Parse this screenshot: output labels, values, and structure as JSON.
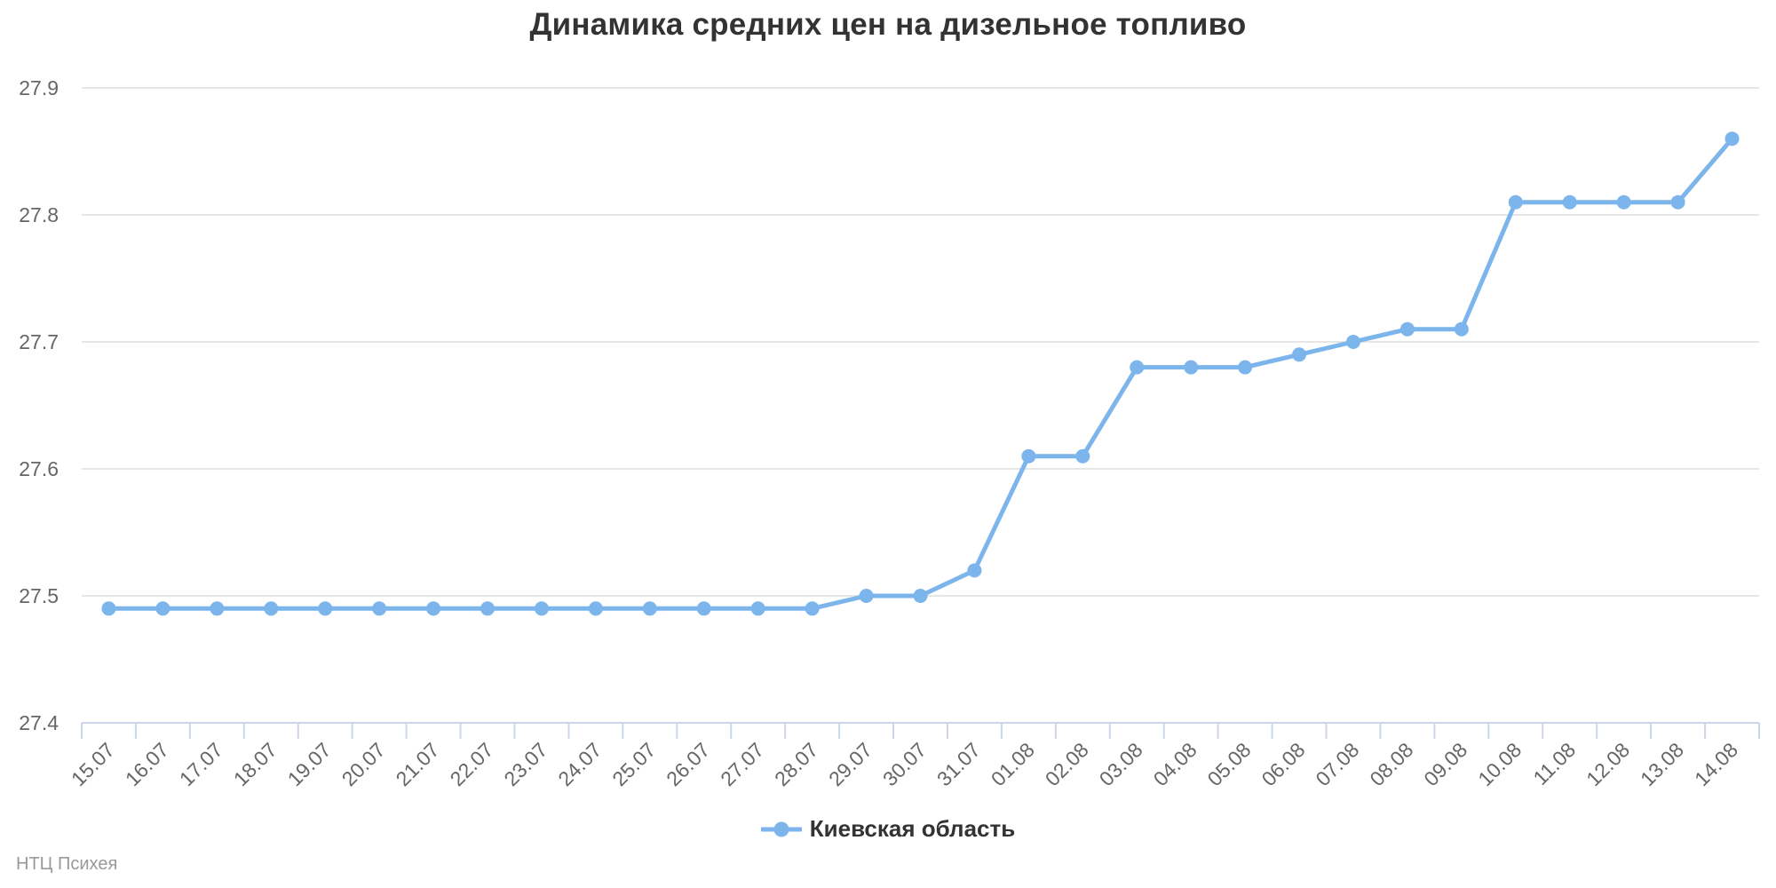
{
  "title": "Динамика средних цен на дизельное топливо",
  "credit": "НТЦ Психея",
  "legend": {
    "label": "Киевская область"
  },
  "colors": {
    "series": "#7cb5ec",
    "axis_line": "#ccd6eb",
    "gridline": "#e6e6e6",
    "tick_label": "#666666",
    "title_text": "#333333",
    "legend_text": "#333333",
    "credit_text": "#999999",
    "background": "#ffffff"
  },
  "chart_data": {
    "type": "line",
    "title": "Динамика средних цен на дизельное топливо",
    "xlabel": "",
    "ylabel": "",
    "ylim": [
      27.4,
      27.9
    ],
    "yticks": [
      27.4,
      27.5,
      27.6,
      27.7,
      27.8,
      27.9
    ],
    "grid": true,
    "legend_position": "bottom",
    "marker": "circle",
    "categories": [
      "15.07",
      "16.07",
      "17.07",
      "18.07",
      "19.07",
      "20.07",
      "21.07",
      "22.07",
      "23.07",
      "24.07",
      "25.07",
      "26.07",
      "27.07",
      "28.07",
      "29.07",
      "30.07",
      "31.07",
      "01.08",
      "02.08",
      "03.08",
      "04.08",
      "05.08",
      "06.08",
      "07.08",
      "08.08",
      "09.08",
      "10.08",
      "11.08",
      "12.08",
      "13.08",
      "14.08"
    ],
    "series": [
      {
        "name": "Киевская область",
        "values": [
          27.49,
          27.49,
          27.49,
          27.49,
          27.49,
          27.49,
          27.49,
          27.49,
          27.49,
          27.49,
          27.49,
          27.49,
          27.49,
          27.49,
          27.5,
          27.5,
          27.52,
          27.61,
          27.61,
          27.68,
          27.68,
          27.68,
          27.69,
          27.7,
          27.71,
          27.71,
          27.81,
          27.81,
          27.81,
          27.81,
          27.86
        ]
      }
    ]
  }
}
